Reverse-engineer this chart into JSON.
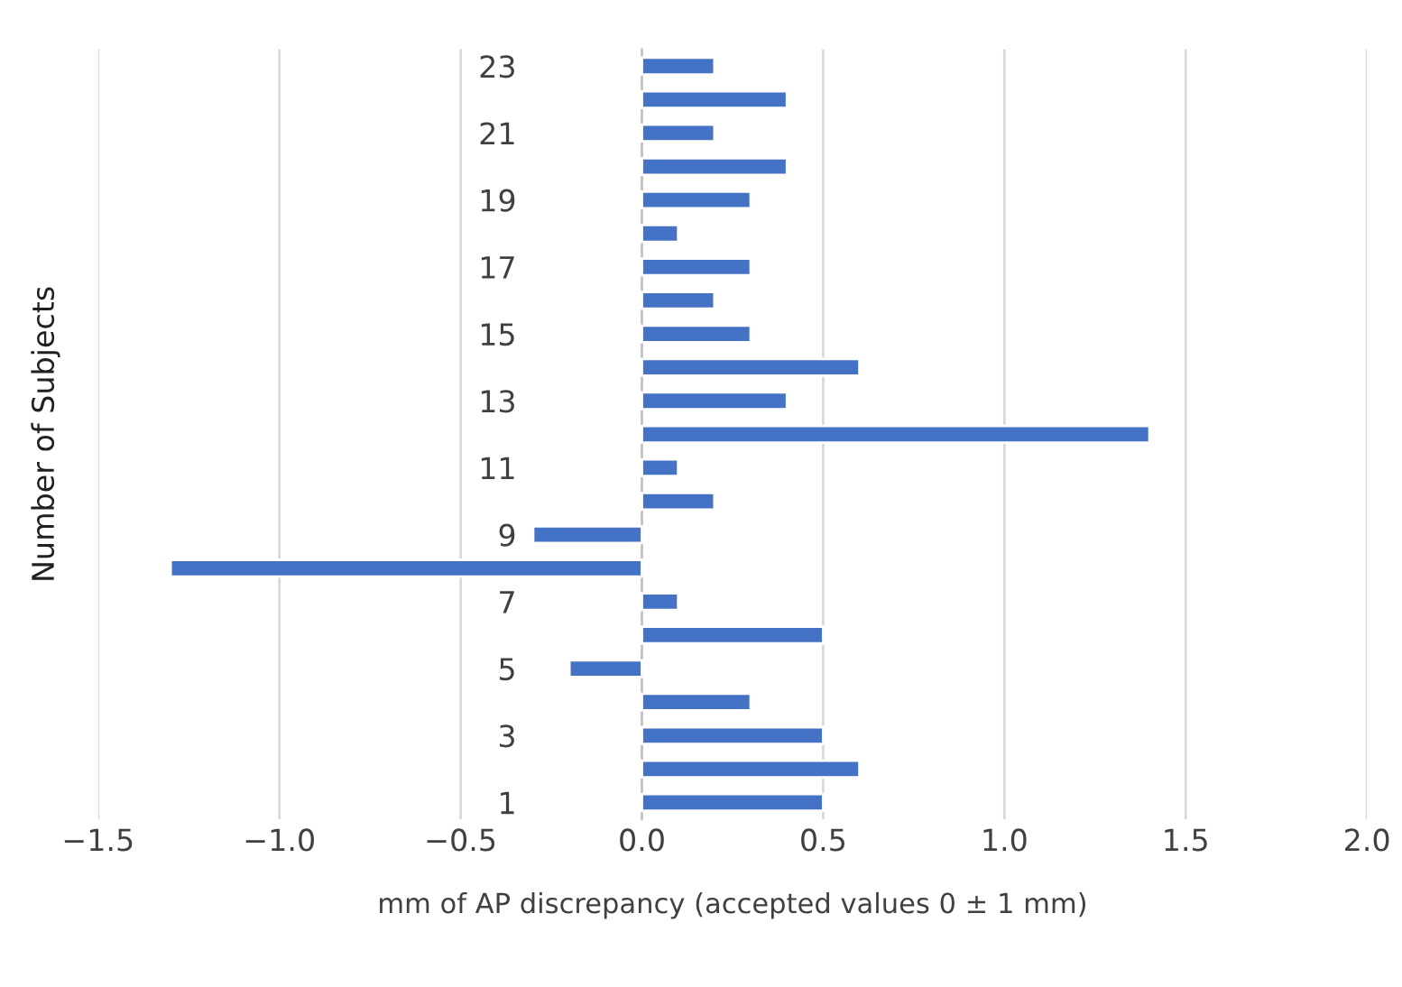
{
  "chart_data": {
    "type": "bar",
    "orientation": "horizontal",
    "xlabel": "mm of AP discrepancy (accepted values 0 ± 1 mm)",
    "ylabel": "Number of Subjects",
    "categories": [
      "23",
      null,
      "21",
      null,
      "19",
      null,
      "17",
      null,
      "15",
      null,
      "13",
      null,
      "11",
      null,
      "9",
      null,
      "7",
      null,
      "5",
      null,
      "3",
      null,
      "1"
    ],
    "values": [
      0.2,
      0.4,
      0.2,
      0.4,
      0.3,
      0.1,
      0.3,
      0.2,
      0.3,
      0.6,
      0.4,
      1.4,
      0.1,
      0.2,
      -0.3,
      -1.3,
      0.1,
      0.5,
      -0.2,
      0.3,
      0.5,
      0.6,
      0.5
    ],
    "color": "#4472c4",
    "xlim": [
      -1.5,
      2.0
    ],
    "xticks": [
      {
        "value": -1.5,
        "label": "−1.5"
      },
      {
        "value": -1.0,
        "label": "−1.0"
      },
      {
        "value": -0.5,
        "label": "−0.5"
      },
      {
        "value": 0.0,
        "label": "0.0"
      },
      {
        "value": 0.5,
        "label": "0.5"
      },
      {
        "value": 1.0,
        "label": "1.0"
      },
      {
        "value": 1.5,
        "label": "1.5"
      },
      {
        "value": 2.0,
        "label": "2.0"
      }
    ],
    "grid": "x"
  }
}
